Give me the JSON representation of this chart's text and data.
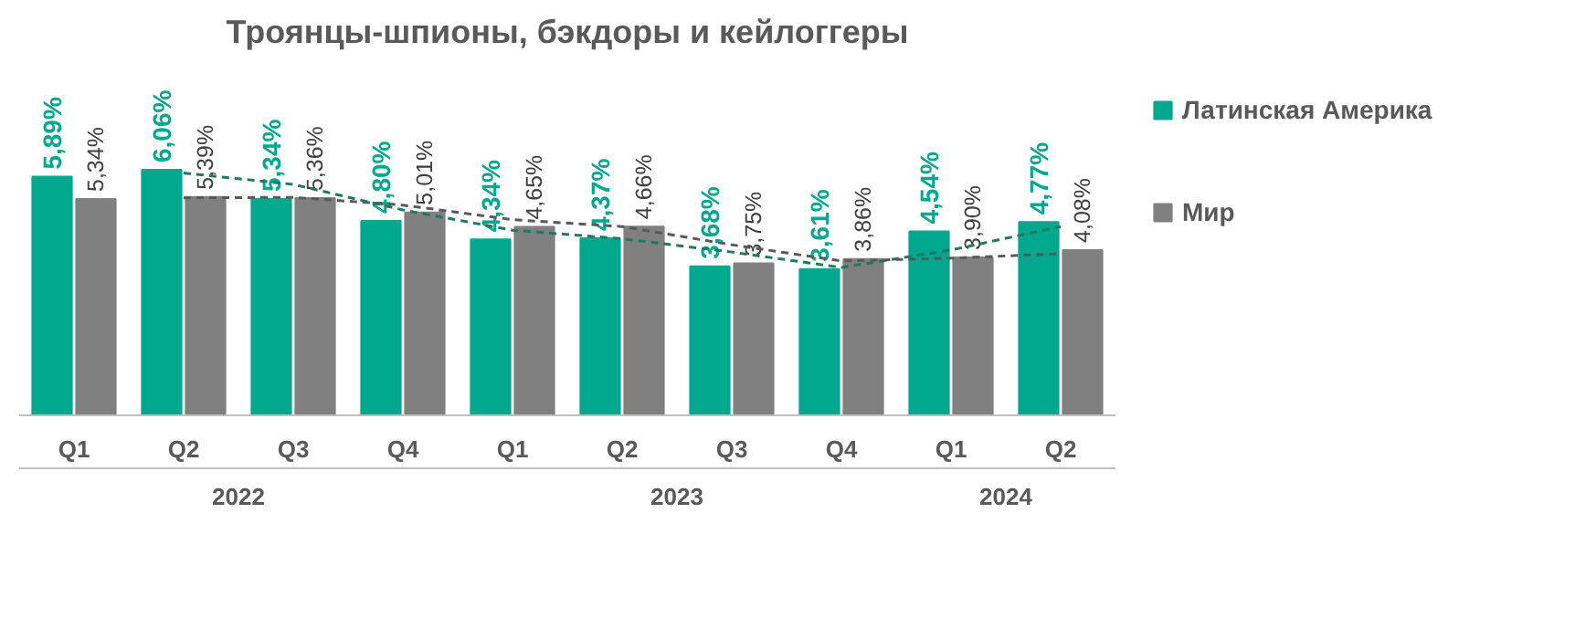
{
  "chart_data": {
    "type": "bar",
    "title": "Троянцы-шпионы, бэкдоры и кейлоггеры",
    "categories": [
      "Q1",
      "Q2",
      "Q3",
      "Q4",
      "Q1",
      "Q2",
      "Q3",
      "Q4",
      "Q1",
      "Q2"
    ],
    "annotations": [
      "2022",
      "2023",
      "2024"
    ],
    "series": [
      {
        "name": "Латинская Америка",
        "color": "#00a88e",
        "values": [
          5.89,
          6.06,
          5.34,
          4.8,
          4.34,
          4.37,
          3.68,
          3.61,
          4.54,
          4.77
        ],
        "value_labels": [
          "5,89%",
          "6,06%",
          "5,34%",
          "4,80%",
          "4,34%",
          "4,37%",
          "3,68%",
          "3,61%",
          "4,54%",
          "4,77%"
        ]
      },
      {
        "name": "Мир",
        "color": "#808080",
        "values": [
          5.34,
          5.39,
          5.36,
          5.01,
          4.65,
          4.66,
          3.75,
          3.86,
          3.9,
          4.08
        ],
        "value_labels": [
          "5,34%",
          "5,39%",
          "5,36%",
          "5,01%",
          "4,65%",
          "4,66%",
          "3,75%",
          "3,86%",
          "3,90%",
          "4,08%"
        ]
      },
      {
        "type": "line",
        "color": "#1e7a5e",
        "line_style": "dashed",
        "values": [
          null,
          5.98,
          5.7,
          5.07,
          4.57,
          4.36,
          4.03,
          3.65,
          4.08,
          4.66
        ]
      },
      {
        "type": "line",
        "color": "#595959",
        "line_style": "dashed",
        "values": [
          null,
          5.37,
          5.38,
          5.19,
          4.83,
          4.66,
          4.21,
          3.81,
          3.88,
          3.99
        ]
      }
    ],
    "legend": "right",
    "grid": false
  }
}
